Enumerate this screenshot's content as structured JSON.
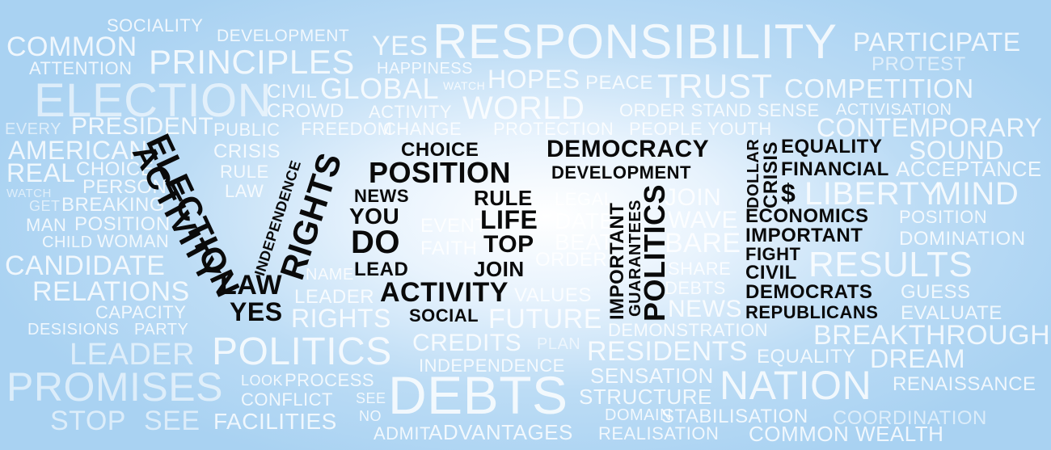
{
  "background_words": [
    {
      "id": "sociality",
      "text": "SOCIALITY"
    },
    {
      "id": "development",
      "text": "DEVELOPMENT"
    },
    {
      "id": "yes1",
      "text": "YES"
    },
    {
      "id": "responsibility",
      "text": "RESPONSIBILITY"
    },
    {
      "id": "participate",
      "text": "PARTICIPATE"
    },
    {
      "id": "common",
      "text": "COMMON"
    },
    {
      "id": "principles",
      "text": "PRINCIPLES"
    },
    {
      "id": "attention",
      "text": "ATTENTION"
    },
    {
      "id": "happiness",
      "text": "HAPPINESS"
    },
    {
      "id": "protest",
      "text": "PROTEST"
    },
    {
      "id": "election",
      "text": "ELECTION"
    },
    {
      "id": "civil1",
      "text": "CIVIL"
    },
    {
      "id": "global",
      "text": "GLOBAL"
    },
    {
      "id": "watch1",
      "text": "WATCH"
    },
    {
      "id": "hopes",
      "text": "HOPES"
    },
    {
      "id": "peace",
      "text": "PEACE"
    },
    {
      "id": "trust",
      "text": "TRUST"
    },
    {
      "id": "competition",
      "text": "COMPETITION"
    },
    {
      "id": "crowd",
      "text": "CROWD"
    },
    {
      "id": "activity1",
      "text": "ACTIVITY"
    },
    {
      "id": "world",
      "text": "WORLD"
    },
    {
      "id": "order",
      "text": "ORDER STAND SENSE"
    },
    {
      "id": "activisation",
      "text": "ACTIVISATION"
    },
    {
      "id": "every",
      "text": "EVERY"
    },
    {
      "id": "president",
      "text": "PRESIDENT"
    },
    {
      "id": "public",
      "text": "PUBLIC"
    },
    {
      "id": "freedom",
      "text": "FREEDOM"
    },
    {
      "id": "change",
      "text": "CHANGE"
    },
    {
      "id": "protection",
      "text": "PROTECTION"
    },
    {
      "id": "people",
      "text": "PEOPLE YOUTH"
    },
    {
      "id": "contemporary",
      "text": "CONTEMPORARY"
    },
    {
      "id": "american",
      "text": "AMERICAN"
    },
    {
      "id": "crisis1",
      "text": "CRISIS"
    },
    {
      "id": "sound",
      "text": "SOUND"
    },
    {
      "id": "real",
      "text": "REAL"
    },
    {
      "id": "choice1",
      "text": "CHOICE"
    },
    {
      "id": "rule1",
      "text": "RULE"
    },
    {
      "id": "acceptance",
      "text": "ACCEPTANCE"
    },
    {
      "id": "watch2",
      "text": "WATCH"
    },
    {
      "id": "person",
      "text": "PERSON"
    },
    {
      "id": "law1",
      "text": "LAW"
    },
    {
      "id": "liberty",
      "text": "LIBERTY"
    },
    {
      "id": "mind",
      "text": "MIND"
    },
    {
      "id": "get",
      "text": "GET"
    },
    {
      "id": "breaking",
      "text": "BREAKING"
    },
    {
      "id": "legal",
      "text": "LEGAL"
    },
    {
      "id": "join1",
      "text": "JOIN"
    },
    {
      "id": "man",
      "text": "MAN"
    },
    {
      "id": "position1",
      "text": "POSITION"
    },
    {
      "id": "date",
      "text": "DATE"
    },
    {
      "id": "wave",
      "text": "WAVE"
    },
    {
      "id": "position2",
      "text": "POSITION"
    },
    {
      "id": "child",
      "text": "CHILD"
    },
    {
      "id": "woman",
      "text": "WOMAN"
    },
    {
      "id": "event",
      "text": "EVENT"
    },
    {
      "id": "beat",
      "text": "BEAT"
    },
    {
      "id": "bare",
      "text": "BARE"
    },
    {
      "id": "domination",
      "text": "DOMINATION"
    },
    {
      "id": "candidate",
      "text": "CANDIDATE"
    },
    {
      "id": "faith",
      "text": "FAITH"
    },
    {
      "id": "order2",
      "text": "ORDER"
    },
    {
      "id": "share",
      "text": "SHARE"
    },
    {
      "id": "results",
      "text": "RESULTS"
    },
    {
      "id": "relations",
      "text": "RELATIONS"
    },
    {
      "id": "name",
      "text": "NAME"
    },
    {
      "id": "debts1",
      "text": "DEBTS"
    },
    {
      "id": "leader1",
      "text": "LEADER"
    },
    {
      "id": "values",
      "text": "VALUES"
    },
    {
      "id": "guess",
      "text": "GUESS"
    },
    {
      "id": "capacity",
      "text": "CAPACITY"
    },
    {
      "id": "news2",
      "text": "NEWS"
    },
    {
      "id": "evaluate",
      "text": "EVALUATE"
    },
    {
      "id": "desisions",
      "text": "DESISIONS"
    },
    {
      "id": "party",
      "text": "PARTY"
    },
    {
      "id": "rights2",
      "text": "RIGHTS"
    },
    {
      "id": "future",
      "text": "FUTURE"
    },
    {
      "id": "demonstration",
      "text": "DEMONSTRATION"
    },
    {
      "id": "breakthrough",
      "text": "BREAKTHROUGH"
    },
    {
      "id": "leader2",
      "text": "LEADER"
    },
    {
      "id": "politics1",
      "text": "POLITICS"
    },
    {
      "id": "credits",
      "text": "CREDITS"
    },
    {
      "id": "plan",
      "text": "PLAN"
    },
    {
      "id": "residents",
      "text": "RESIDENTS"
    },
    {
      "id": "equality2",
      "text": "EQUALITY"
    },
    {
      "id": "dream",
      "text": "DREAM"
    },
    {
      "id": "independence2",
      "text": "INDEPENDENCE"
    },
    {
      "id": "promises",
      "text": "PROMISES"
    },
    {
      "id": "look",
      "text": "LOOK"
    },
    {
      "id": "process",
      "text": "PROCESS"
    },
    {
      "id": "sensation",
      "text": "SENSATION"
    },
    {
      "id": "nation",
      "text": "NATION"
    },
    {
      "id": "renaissance",
      "text": "RENAISSANCE"
    },
    {
      "id": "conflict",
      "text": "CONFLICT"
    },
    {
      "id": "see1",
      "text": "SEE"
    },
    {
      "id": "debts2",
      "text": "DEBTS"
    },
    {
      "id": "structure",
      "text": "STRUCTURE"
    },
    {
      "id": "stop",
      "text": "STOP"
    },
    {
      "id": "see2",
      "text": "SEE"
    },
    {
      "id": "facilities",
      "text": "FACILITIES"
    },
    {
      "id": "no",
      "text": "NO"
    },
    {
      "id": "domain",
      "text": "DOMAIN"
    },
    {
      "id": "stabilisation",
      "text": "STABILISATION"
    },
    {
      "id": "coordination",
      "text": "COORDINATION"
    },
    {
      "id": "admit",
      "text": "ADMIT"
    },
    {
      "id": "advantages",
      "text": "ADVANTAGES"
    },
    {
      "id": "realisation",
      "text": "REALISATION"
    },
    {
      "id": "commonwealth",
      "text": "COMMON WEALTH"
    }
  ],
  "vote_words": [
    {
      "id": "activity",
      "text": "ACTIVITY"
    },
    {
      "id": "election",
      "text": "ELECTION"
    },
    {
      "id": "independence",
      "text": "INDEPENDENCE"
    },
    {
      "id": "rights",
      "text": "RIGHTS"
    },
    {
      "id": "law",
      "text": "LAW"
    },
    {
      "id": "yes",
      "text": "YES"
    },
    {
      "id": "choice",
      "text": "CHOICE"
    },
    {
      "id": "position",
      "text": "POSITION"
    },
    {
      "id": "news",
      "text": "NEWS"
    },
    {
      "id": "rule",
      "text": "RULE"
    },
    {
      "id": "you",
      "text": "YOU"
    },
    {
      "id": "life",
      "text": "LIFE"
    },
    {
      "id": "do",
      "text": "DO"
    },
    {
      "id": "top",
      "text": "TOP"
    },
    {
      "id": "lead",
      "text": "LEAD"
    },
    {
      "id": "join",
      "text": "JOIN"
    },
    {
      "id": "activity2",
      "text": "ACTIVITY"
    },
    {
      "id": "social",
      "text": "SOCIAL"
    },
    {
      "id": "democracy",
      "text": "DEMOCRACY"
    },
    {
      "id": "development",
      "text": "DEVELOPMENT"
    },
    {
      "id": "important_v",
      "text": "IMPORTANT"
    },
    {
      "id": "guarantees",
      "text": "GUARANTEES"
    },
    {
      "id": "politics",
      "text": "POLITICS"
    },
    {
      "id": "dollar",
      "text": "DOLLAR"
    },
    {
      "id": "crisis",
      "text": "CRISIS"
    },
    {
      "id": "equality",
      "text": "EQUALITY"
    },
    {
      "id": "financial",
      "text": "FINANCIAL"
    },
    {
      "id": "dollar_sign",
      "text": "$"
    },
    {
      "id": "economics",
      "text": "ECONOMICS"
    },
    {
      "id": "important",
      "text": "IMPORTANT"
    },
    {
      "id": "fight",
      "text": "FIGHT"
    },
    {
      "id": "civil",
      "text": "CIVIL"
    },
    {
      "id": "democrats",
      "text": "DEMOCRATS"
    },
    {
      "id": "republicans",
      "text": "REPUBLICANS"
    }
  ]
}
